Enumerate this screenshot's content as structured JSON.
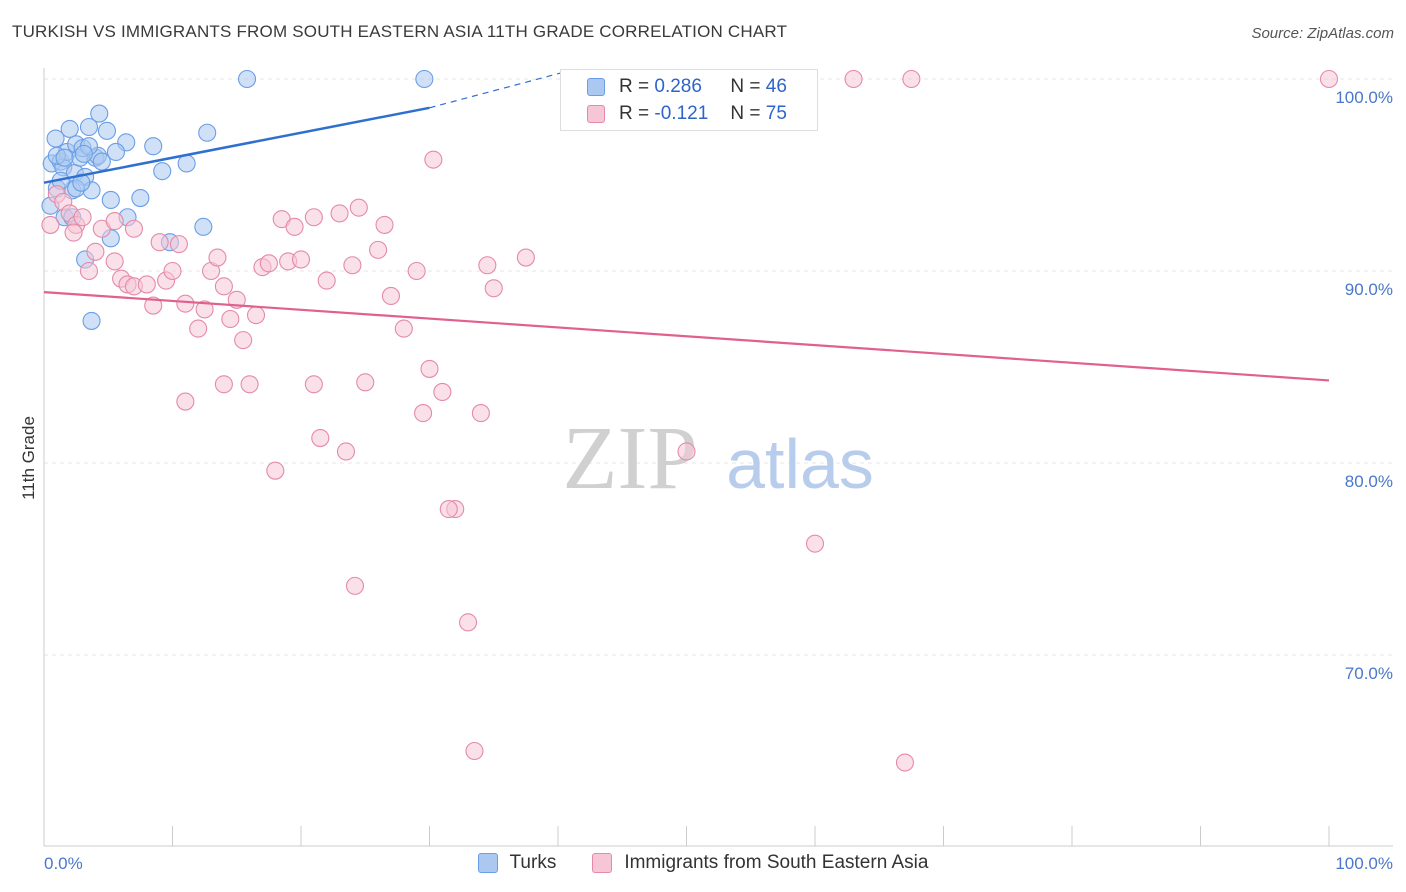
{
  "title": "TURKISH VS IMMIGRANTS FROM SOUTH EASTERN ASIA 11TH GRADE CORRELATION CHART",
  "source": "Source: ZipAtlas.com",
  "watermark": {
    "zip": "ZIP",
    "atlas": "atlas"
  },
  "legend_top": [
    {
      "r_label": "R =",
      "r_value": "0.286",
      "n_label": "N =",
      "n_value": "46"
    },
    {
      "r_label": "R =",
      "r_value": "-0.121",
      "n_label": "N =",
      "n_value": "75"
    }
  ],
  "legend_bottom": {
    "turks": "Turks",
    "immigrants": "Immigrants from South Eastern Asia"
  },
  "colors": {
    "blue": "#6a9ee6",
    "blue_fill": "#aac8f0",
    "blue_line": "#2e6fd0",
    "pink": "#e58aa8",
    "pink_fill": "#f6c6d6",
    "pink_line": "#e06090",
    "axis_text": "#4a78c8"
  },
  "chart_data": {
    "type": "scatter",
    "title": "TURKISH VS IMMIGRANTS FROM SOUTH EASTERN ASIA 11TH GRADE CORRELATION CHART",
    "xlabel": "",
    "ylabel": "11th Grade",
    "xlim": [
      0,
      100
    ],
    "ylim": [
      60.5,
      101.5
    ],
    "x_tick_labels": [
      "0.0%",
      "100.0%"
    ],
    "y_ticks": [
      {
        "value": 100,
        "label": "100.0%"
      },
      {
        "value": 90,
        "label": "90.0%"
      },
      {
        "value": 80,
        "label": "80.0%"
      },
      {
        "value": 70,
        "label": "70.0%"
      }
    ],
    "series": [
      {
        "name": "Turks",
        "r": 0.286,
        "n": 46,
        "trend": {
          "x": [
            0,
            30.0
          ],
          "y": [
            94.6,
            98.5
          ],
          "dashed_to": [
            40.7,
            100.4
          ]
        },
        "points": [
          [
            0.6,
            95.6
          ],
          [
            1.0,
            94.3
          ],
          [
            0.9,
            96.9
          ],
          [
            1.3,
            95.7
          ],
          [
            1.5,
            95.4
          ],
          [
            1.8,
            96.2
          ],
          [
            2.0,
            97.4
          ],
          [
            2.2,
            94.2
          ],
          [
            2.4,
            95.1
          ],
          [
            2.5,
            96.6
          ],
          [
            2.8,
            95.9
          ],
          [
            3.0,
            96.4
          ],
          [
            3.2,
            94.9
          ],
          [
            3.5,
            97.5
          ],
          [
            3.7,
            94.2
          ],
          [
            4.0,
            95.9
          ],
          [
            4.2,
            96.0
          ],
          [
            4.5,
            95.7
          ],
          [
            4.9,
            97.3
          ],
          [
            5.2,
            93.7
          ],
          [
            6.4,
            96.7
          ],
          [
            8.5,
            96.5
          ],
          [
            9.2,
            95.2
          ],
          [
            11.1,
            95.6
          ],
          [
            12.4,
            92.3
          ],
          [
            15.8,
            100.0
          ],
          [
            29.6,
            100.0
          ],
          [
            1.6,
            92.8
          ],
          [
            2.2,
            92.8
          ],
          [
            5.2,
            91.7
          ],
          [
            3.2,
            90.6
          ],
          [
            3.7,
            87.4
          ],
          [
            9.8,
            91.5
          ],
          [
            12.7,
            97.2
          ],
          [
            1.0,
            96.0
          ],
          [
            2.5,
            94.3
          ],
          [
            3.5,
            96.5
          ],
          [
            5.6,
            96.2
          ],
          [
            1.3,
            94.7
          ],
          [
            7.5,
            93.8
          ],
          [
            6.5,
            92.8
          ],
          [
            1.6,
            95.9
          ],
          [
            2.9,
            94.6
          ],
          [
            4.3,
            98.2
          ],
          [
            3.1,
            96.1
          ],
          [
            0.5,
            93.4
          ]
        ]
      },
      {
        "name": "Immigrants from South Eastern Asia",
        "r": -0.121,
        "n": 75,
        "trend": {
          "x": [
            0,
            100
          ],
          "y": [
            88.9,
            84.3
          ]
        },
        "points": [
          [
            0.5,
            92.4
          ],
          [
            1.0,
            94.0
          ],
          [
            1.5,
            93.6
          ],
          [
            2.0,
            93.0
          ],
          [
            2.5,
            92.4
          ],
          [
            3.0,
            92.8
          ],
          [
            3.5,
            90.0
          ],
          [
            4.0,
            91.0
          ],
          [
            4.5,
            92.2
          ],
          [
            5.5,
            92.6
          ],
          [
            6.0,
            89.6
          ],
          [
            6.5,
            89.3
          ],
          [
            7.0,
            89.2
          ],
          [
            8.0,
            89.3
          ],
          [
            8.5,
            88.2
          ],
          [
            9.0,
            91.5
          ],
          [
            9.5,
            89.5
          ],
          [
            10.0,
            90.0
          ],
          [
            10.5,
            91.4
          ],
          [
            11.0,
            88.3
          ],
          [
            12.0,
            87.0
          ],
          [
            12.5,
            88.0
          ],
          [
            13.0,
            90.0
          ],
          [
            13.5,
            90.7
          ],
          [
            14.0,
            89.2
          ],
          [
            14.5,
            87.5
          ],
          [
            15.0,
            88.5
          ],
          [
            15.5,
            86.4
          ],
          [
            16.0,
            84.1
          ],
          [
            16.5,
            87.7
          ],
          [
            17.0,
            90.2
          ],
          [
            17.5,
            90.4
          ],
          [
            18.5,
            92.7
          ],
          [
            19.0,
            90.5
          ],
          [
            19.5,
            92.3
          ],
          [
            20.0,
            90.6
          ],
          [
            21.0,
            92.8
          ],
          [
            22.0,
            89.5
          ],
          [
            23.0,
            93.0
          ],
          [
            24.0,
            90.3
          ],
          [
            24.5,
            93.3
          ],
          [
            25.0,
            84.2
          ],
          [
            26.0,
            91.1
          ],
          [
            26.5,
            92.4
          ],
          [
            27.0,
            88.7
          ],
          [
            28.0,
            87.0
          ],
          [
            29.0,
            90.0
          ],
          [
            30.0,
            84.9
          ],
          [
            30.3,
            95.8
          ],
          [
            31.0,
            83.7
          ],
          [
            32.0,
            77.6
          ],
          [
            33.0,
            71.7
          ],
          [
            33.5,
            65.0
          ],
          [
            34.0,
            82.6
          ],
          [
            34.5,
            90.3
          ],
          [
            35.0,
            89.1
          ],
          [
            37.5,
            90.7
          ],
          [
            50.0,
            80.6
          ],
          [
            60.0,
            75.8
          ],
          [
            63.0,
            100.0
          ],
          [
            67.5,
            100.0
          ],
          [
            67.0,
            64.4
          ],
          [
            100.0,
            100.0
          ],
          [
            11.0,
            83.2
          ],
          [
            14.0,
            84.1
          ],
          [
            18.0,
            79.6
          ],
          [
            21.5,
            81.3
          ],
          [
            23.5,
            80.6
          ],
          [
            24.2,
            73.6
          ],
          [
            29.5,
            82.6
          ],
          [
            31.5,
            77.6
          ],
          [
            21.0,
            84.1
          ],
          [
            7.0,
            92.2
          ],
          [
            5.5,
            90.5
          ],
          [
            2.3,
            92.0
          ]
        ]
      }
    ]
  }
}
